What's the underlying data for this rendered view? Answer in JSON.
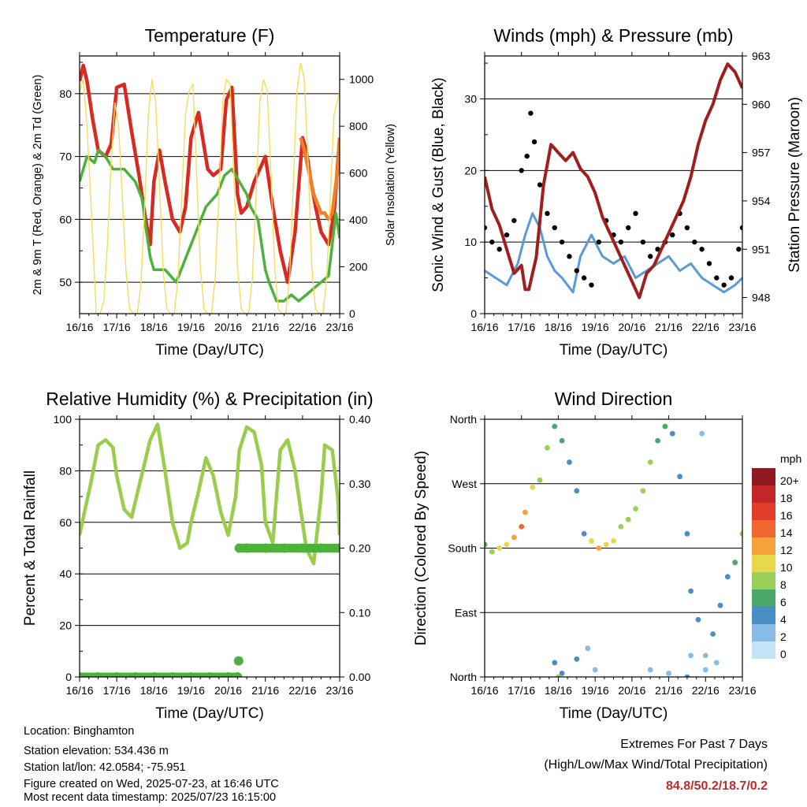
{
  "footer": {
    "location": "Location: Binghamton",
    "elevation": "Station elevation: 534.436 m",
    "latlon": "Station lat/lon: 42.0584; -75.951",
    "created": "Figure created on Wed, 2025-07-23, at 16:46 UTC",
    "timestamp": "Most recent data timestamp: 2025/07/23 16:15:00",
    "extremes_title": "Extremes For Past 7 Days",
    "extremes_sub": "(High/Low/Max Wind/Total Precipitation)",
    "extremes_values": "84.8/50.2/18.7/0.2"
  },
  "colors": {
    "temp2m": "#d62a22",
    "temp9m": "#f07e2a",
    "dewpoint": "#4cb23c",
    "solar": "#f6dc5a",
    "wind": "#5a9ad6",
    "gust": "#000000",
    "pressure": "#a01e1e",
    "rh": "#9acd4c",
    "precip": "#4cb23c"
  },
  "chart_data": [
    {
      "type": "line",
      "title": "Temperature (F)",
      "xlabel": "Time (Day/UTC)",
      "ylabel": "2m & 9m T (Red, Orange) & 2m Td (Green)",
      "y2label": "Solar Insolation (Yellow)",
      "x_ticks": [
        "16/16",
        "17/16",
        "18/16",
        "19/16",
        "20/16",
        "21/16",
        "22/16",
        "23/16"
      ],
      "ylim": [
        45,
        86
      ],
      "y_ticks": [
        50,
        60,
        70,
        80
      ],
      "y2lim": [
        0,
        1100
      ],
      "y2_ticks": [
        0,
        200,
        400,
        600,
        800,
        1000
      ],
      "grid": "horizontal",
      "series": [
        {
          "name": "2m T",
          "color": "temp2m",
          "x": [
            0,
            0.1,
            0.2,
            0.35,
            0.5,
            0.7,
            0.85,
            1.0,
            1.2,
            1.4,
            1.6,
            1.75,
            1.9,
            2.0,
            2.15,
            2.3,
            2.5,
            2.7,
            2.85,
            3.0,
            3.2,
            3.45,
            3.6,
            3.8,
            3.95,
            4.1,
            4.25,
            4.35,
            4.5,
            4.7,
            5.0,
            5.2,
            5.4,
            5.6,
            5.8,
            6.0,
            6.1,
            6.2,
            6.35,
            6.5,
            6.7,
            6.85,
            7.0
          ],
          "y": [
            82,
            84.5,
            82,
            76,
            71,
            70,
            72,
            81,
            81.5,
            74,
            67,
            61,
            56,
            66,
            71,
            66,
            60,
            58,
            62,
            73,
            77,
            68,
            67,
            68,
            79,
            81,
            64,
            61,
            62,
            66,
            70,
            62,
            55,
            50,
            58,
            73,
            71,
            67,
            62,
            58,
            56,
            61,
            73
          ]
        },
        {
          "name": "9m T",
          "color": "temp9m",
          "x": [
            5.95,
            6.05,
            6.3,
            6.5,
            6.6,
            6.7,
            6.8,
            6.95,
            7.0
          ],
          "y": [
            73,
            71,
            64,
            61,
            61,
            60,
            61,
            68,
            73
          ]
        },
        {
          "name": "2m Td",
          "color": "dewpoint",
          "x": [
            0,
            0.2,
            0.4,
            0.5,
            0.7,
            0.9,
            1.2,
            1.5,
            1.7,
            1.75,
            1.9,
            2.0,
            2.3,
            2.6,
            2.8,
            3.0,
            3.2,
            3.4,
            3.7,
            3.9,
            4.1,
            4.3,
            4.5,
            4.6,
            4.8,
            5.0,
            5.1,
            5.3,
            5.5,
            5.7,
            5.9,
            6.1,
            6.3,
            6.5,
            6.7,
            6.9,
            7.0
          ],
          "y": [
            66,
            70,
            69,
            71,
            70,
            68,
            68,
            66,
            63,
            60,
            54,
            52,
            52,
            50,
            53,
            56,
            59,
            62,
            64,
            67,
            68,
            66,
            64,
            62,
            60,
            52,
            50,
            47,
            47,
            48,
            47,
            48,
            49,
            50,
            51,
            61,
            57
          ]
        },
        {
          "name": "Solar",
          "color": "solar",
          "axis": "y2",
          "x": [
            0,
            0.1,
            0.2,
            0.3,
            0.4,
            0.45,
            0.55,
            0.65,
            0.75,
            0.85,
            0.95,
            1.05,
            1.15,
            1.25,
            1.35,
            1.45,
            1.55,
            1.65,
            1.75,
            1.85,
            1.95,
            2.05,
            2.15,
            2.25,
            2.35,
            2.45,
            2.55,
            2.65,
            2.75,
            2.85,
            2.95,
            3.05,
            3.15,
            3.25,
            3.35,
            3.45,
            3.55,
            3.65,
            3.75,
            3.85,
            3.95,
            4.05,
            4.15,
            4.25,
            4.35,
            4.45,
            4.55,
            4.65,
            4.75,
            4.85,
            4.95,
            5.05,
            5.15,
            5.25,
            5.35,
            5.45,
            5.55,
            5.65,
            5.75,
            5.85,
            5.95,
            6.05,
            6.15,
            6.25,
            6.35,
            6.45,
            6.55,
            6.65,
            6.75,
            6.85,
            7.0
          ],
          "y": [
            950,
            1000,
            800,
            500,
            150,
            0,
            0,
            50,
            300,
            650,
            900,
            800,
            500,
            180,
            20,
            0,
            0,
            120,
            450,
            850,
            1000,
            900,
            550,
            180,
            20,
            0,
            0,
            150,
            500,
            850,
            950,
            980,
            600,
            200,
            20,
            0,
            0,
            150,
            500,
            900,
            1000,
            980,
            600,
            200,
            20,
            0,
            0,
            150,
            500,
            900,
            1000,
            950,
            600,
            200,
            20,
            0,
            0,
            150,
            550,
            950,
            1070,
            1000,
            650,
            200,
            20,
            0,
            0,
            150,
            500,
            850,
            950
          ]
        }
      ]
    },
    {
      "type": "scatter",
      "title": "Winds (mph) & Pressure (mb)",
      "xlabel": "Time (Day/UTC)",
      "ylabel": "Sonic Wind & Gust (Blue, Black)",
      "y2label": "Station Pressure (Maroon)",
      "x_ticks": [
        "16/16",
        "17/16",
        "18/16",
        "19/16",
        "20/16",
        "21/16",
        "22/16",
        "23/16"
      ],
      "ylim": [
        0,
        36
      ],
      "y_ticks": [
        0,
        10,
        20,
        30
      ],
      "y2lim": [
        947,
        963
      ],
      "y2_ticks": [
        948,
        951,
        954,
        957,
        960,
        963
      ],
      "grid": "horizontal",
      "series": [
        {
          "name": "Wind",
          "color": "wind",
          "x": [
            0,
            0.3,
            0.6,
            0.9,
            1.1,
            1.3,
            1.5,
            1.7,
            1.9,
            2.1,
            2.4,
            2.6,
            2.9,
            3.2,
            3.5,
            3.8,
            4.1,
            4.4,
            4.7,
            5.0,
            5.3,
            5.6,
            5.9,
            6.2,
            6.5,
            6.8,
            7.0
          ],
          "y": [
            6,
            5,
            4,
            7,
            11,
            14,
            12,
            8,
            6,
            5,
            3,
            8,
            11,
            8,
            7,
            8,
            5,
            6,
            7,
            8,
            6,
            7,
            5,
            4,
            3,
            4,
            5
          ]
        },
        {
          "name": "Gust",
          "color": "gust",
          "x": [
            0,
            0.2,
            0.4,
            0.6,
            0.8,
            1.0,
            1.15,
            1.25,
            1.35,
            1.5,
            1.7,
            1.9,
            2.1,
            2.3,
            2.5,
            2.7,
            2.9,
            3.1,
            3.3,
            3.5,
            3.7,
            3.9,
            4.1,
            4.3,
            4.5,
            4.7,
            4.9,
            5.1,
            5.3,
            5.5,
            5.7,
            5.9,
            6.1,
            6.3,
            6.5,
            6.7,
            6.9,
            7.0
          ],
          "y": [
            12,
            10,
            9,
            11,
            13,
            20,
            22,
            28,
            24,
            18,
            14,
            12,
            10,
            8,
            6,
            5,
            4,
            10,
            13,
            11,
            10,
            12,
            14,
            10,
            8,
            9,
            10,
            11,
            14,
            12,
            10,
            9,
            7,
            5,
            4,
            5,
            9,
            12
          ]
        },
        {
          "name": "Pressure",
          "color": "pressure",
          "axis": "y2",
          "x": [
            0,
            0.2,
            0.4,
            0.6,
            0.8,
            1.0,
            1.1,
            1.2,
            1.4,
            1.6,
            1.8,
            2.0,
            2.2,
            2.4,
            2.6,
            2.8,
            3.0,
            3.2,
            3.4,
            3.6,
            3.8,
            4.0,
            4.2,
            4.4,
            4.6,
            4.8,
            5.0,
            5.2,
            5.4,
            5.6,
            5.8,
            6.0,
            6.2,
            6.4,
            6.6,
            6.8,
            7.0
          ],
          "y": [
            955.5,
            953.5,
            952.5,
            951,
            949.5,
            950,
            948.5,
            948.5,
            950.5,
            955,
            957.5,
            957,
            956.5,
            957,
            956,
            955.5,
            954.5,
            953,
            952,
            951,
            950,
            949,
            948,
            949.5,
            950,
            951,
            952,
            953,
            954,
            955.5,
            957.5,
            959,
            960,
            961.5,
            962.5,
            962,
            961
          ]
        }
      ]
    },
    {
      "type": "scatter",
      "title": "Relative Humidity (%) & Precipitation (in)",
      "xlabel": "Time (Day/UTC)",
      "ylabel": "Percent & Total Rainfall",
      "x_ticks": [
        "16/16",
        "17/16",
        "18/16",
        "19/16",
        "20/16",
        "21/16",
        "22/16",
        "23/16"
      ],
      "ylim": [
        0,
        100
      ],
      "y_ticks": [
        0,
        20,
        40,
        60,
        80,
        100
      ],
      "y2lim": [
        0,
        0.4
      ],
      "y2_ticks": [
        "0.00",
        "0.10",
        "0.20",
        "0.30",
        "0.40"
      ],
      "grid": "horizontal",
      "series": [
        {
          "name": "RH",
          "color": "rh",
          "x": [
            0,
            0.1,
            0.3,
            0.5,
            0.7,
            0.9,
            1.0,
            1.2,
            1.4,
            1.6,
            1.8,
            1.9,
            2.1,
            2.3,
            2.5,
            2.7,
            2.9,
            3.0,
            3.2,
            3.4,
            3.6,
            3.8,
            4.0,
            4.2,
            4.3,
            4.5,
            4.7,
            4.9,
            5.0,
            5.2,
            5.4,
            5.6,
            5.8,
            5.95,
            6.1,
            6.3,
            6.5,
            6.6,
            6.8,
            6.95,
            7.0
          ],
          "y": [
            55,
            62,
            75,
            90,
            92,
            89,
            78,
            65,
            62,
            74,
            86,
            92,
            98,
            80,
            60,
            50,
            52,
            60,
            72,
            85,
            78,
            64,
            55,
            70,
            88,
            97,
            95,
            82,
            60,
            52,
            88,
            92,
            80,
            65,
            50,
            44,
            70,
            90,
            88,
            70,
            55
          ]
        },
        {
          "name": "Precip",
          "color": "precip",
          "axis": "y2",
          "x": [
            0,
            0.5,
            1.0,
            1.5,
            2.0,
            2.5,
            3.0,
            3.5,
            4.0,
            4.25,
            4.28,
            4.3,
            4.5,
            5.0,
            5.5,
            6.0,
            6.5,
            7.0
          ],
          "y": [
            0,
            0,
            0,
            0,
            0,
            0,
            0,
            0,
            0,
            0,
            0.025,
            0.2,
            0.2,
            0.2,
            0.2,
            0.2,
            0.2,
            0.2
          ]
        }
      ]
    },
    {
      "type": "scatter",
      "title": "Wind Direction",
      "xlabel": "Time (Day/UTC)",
      "ylabel": "Direction (Colored By Speed)",
      "x_ticks": [
        "16/16",
        "17/16",
        "18/16",
        "19/16",
        "20/16",
        "21/16",
        "22/16",
        "23/16"
      ],
      "y_ticks": [
        "North",
        "East",
        "South",
        "West",
        "North"
      ],
      "ylim": [
        0,
        360
      ],
      "grid": "horizontal",
      "legend_title": "mph",
      "legend_labels": [
        "20+",
        "18",
        "16",
        "14",
        "12",
        "10",
        "8",
        "6",
        "4",
        "2",
        "0"
      ],
      "legend_colors": [
        "#8e1a1f",
        "#c4262a",
        "#e23c2a",
        "#f06830",
        "#f6a23c",
        "#e6d84a",
        "#9ad05a",
        "#4aa86a",
        "#4a8ec6",
        "#86bce6",
        "#c2e4f6"
      ],
      "series": [
        {
          "name": "Direction",
          "x": [
            0,
            0.2,
            0.4,
            0.6,
            0.8,
            1.0,
            1.1,
            1.3,
            1.5,
            1.7,
            1.9,
            2.1,
            2.3,
            2.5,
            2.7,
            2.9,
            3.1,
            3.3,
            3.5,
            3.7,
            3.9,
            4.1,
            4.3,
            4.5,
            4.7,
            4.9,
            5.1,
            5.3,
            5.5,
            5.6,
            5.8,
            6.0,
            6.2,
            6.4,
            6.6,
            6.8,
            7.0,
            1.9,
            2.1,
            2.5,
            2.8,
            3.0,
            4.5,
            5.0,
            5.6,
            6.0,
            6.3,
            2.0,
            5.5,
            5.9
          ],
          "y": [
            185,
            175,
            180,
            185,
            195,
            210,
            230,
            265,
            275,
            320,
            350,
            330,
            300,
            260,
            200,
            190,
            180,
            185,
            190,
            210,
            220,
            235,
            260,
            300,
            330,
            350,
            340,
            280,
            200,
            120,
            80,
            30,
            60,
            100,
            140,
            160,
            200,
            20,
            5,
            25,
            40,
            10,
            10,
            5,
            30,
            10,
            20,
            0,
            0,
            340
          ],
          "speeds": [
            6,
            7,
            9,
            10,
            12,
            14,
            12,
            9,
            8,
            7,
            6,
            5,
            4,
            3,
            3,
            10,
            11,
            10,
            9,
            8,
            7,
            7,
            8,
            7,
            6,
            5,
            4,
            4,
            3,
            3,
            3,
            2,
            3,
            3,
            4,
            5,
            7,
            4,
            3,
            3,
            2,
            2,
            2,
            1,
            2,
            2,
            2,
            7,
            3,
            2
          ]
        }
      ]
    }
  ]
}
